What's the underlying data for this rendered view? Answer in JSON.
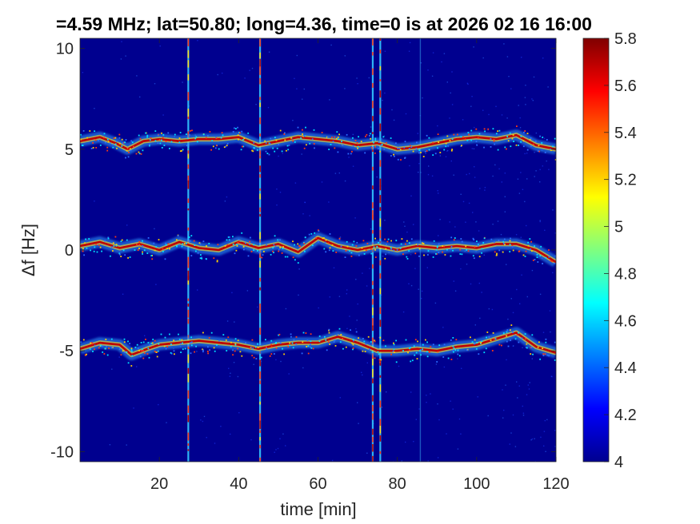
{
  "chart_data": {
    "type": "heatmap",
    "title": "=4.59 MHz;  lat=50.80; long=4.36, time=0 is at 2026 02 16 16:00",
    "xlabel": "time [min]",
    "ylabel": "Δf [Hz]",
    "xlim": [
      0,
      120
    ],
    "ylim": [
      -10.5,
      10.5
    ],
    "xticks": [
      20,
      40,
      60,
      80,
      100,
      120
    ],
    "yticks": [
      10,
      5,
      0,
      -5,
      -10
    ],
    "grid": false,
    "colorbar": {
      "min": 4.0,
      "max": 5.8,
      "ticks": [
        5.8,
        5.6,
        5.4,
        5.2,
        5,
        4.8,
        4.6,
        4.4,
        4.2,
        4
      ],
      "colormap": "jet",
      "position": "right"
    },
    "colors": {
      "background": "#00008f",
      "trace_core": "#c00000",
      "trace_halo": "#2f9fff"
    },
    "traces": [
      {
        "name": "upper",
        "x": [
          0,
          5,
          9,
          12,
          16,
          20,
          25,
          30,
          35,
          40,
          45,
          50,
          55,
          60,
          65,
          70,
          75,
          80,
          85,
          90,
          95,
          100,
          105,
          110,
          115,
          120
        ],
        "y": [
          5.4,
          5.6,
          5.3,
          5.0,
          5.4,
          5.5,
          5.4,
          5.5,
          5.5,
          5.6,
          5.2,
          5.4,
          5.6,
          5.5,
          5.4,
          5.2,
          5.3,
          5.0,
          5.1,
          5.3,
          5.5,
          5.6,
          5.5,
          5.7,
          5.2,
          5.0
        ]
      },
      {
        "name": "middle",
        "x": [
          0,
          5,
          10,
          15,
          20,
          25,
          30,
          35,
          40,
          45,
          50,
          55,
          60,
          65,
          70,
          75,
          80,
          85,
          90,
          95,
          100,
          105,
          110,
          115,
          120
        ],
        "y": [
          0.2,
          0.4,
          0.1,
          0.3,
          0.0,
          0.4,
          0.1,
          0.0,
          0.4,
          0.1,
          0.3,
          -0.1,
          0.6,
          0.2,
          0.0,
          0.2,
          0.0,
          0.2,
          0.1,
          0.2,
          0.1,
          0.3,
          0.3,
          0.0,
          -0.6
        ]
      },
      {
        "name": "lower",
        "x": [
          0,
          5,
          10,
          13,
          17,
          20,
          25,
          30,
          35,
          40,
          45,
          50,
          55,
          60,
          65,
          70,
          75,
          80,
          85,
          90,
          95,
          100,
          105,
          110,
          115,
          120
        ],
        "y": [
          -4.9,
          -4.6,
          -4.7,
          -5.2,
          -4.9,
          -4.7,
          -4.6,
          -4.5,
          -4.6,
          -4.7,
          -4.9,
          -4.7,
          -4.6,
          -4.6,
          -4.3,
          -4.6,
          -5.0,
          -5.0,
          -4.9,
          -5.0,
          -4.8,
          -4.7,
          -4.4,
          -4.1,
          -4.8,
          -5.1
        ]
      }
    ],
    "vertical_interference": [
      {
        "x": 27.3,
        "intensity": "strong"
      },
      {
        "x": 45.4,
        "intensity": "strong"
      },
      {
        "x": 73.8,
        "intensity": "strong"
      },
      {
        "x": 75.7,
        "intensity": "strong"
      },
      {
        "x": 85.8,
        "intensity": "weak"
      }
    ]
  }
}
